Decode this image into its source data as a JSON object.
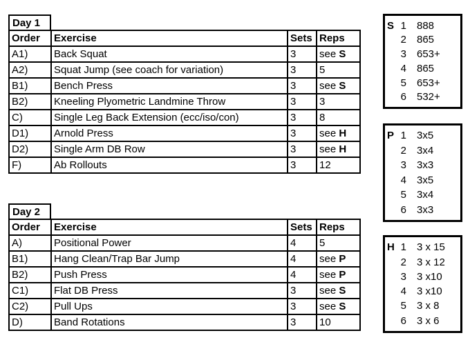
{
  "colors": {
    "border": "#000000",
    "text": "#000000",
    "background": "#ffffff"
  },
  "day1": {
    "label": "Day 1",
    "headers": {
      "order": "Order",
      "exercise": "Exercise",
      "sets": "Sets",
      "reps": "Reps"
    },
    "rows": [
      {
        "order": "A1)",
        "exercise": "Back Squat",
        "sets": "3",
        "reps": "see ",
        "ref": "S"
      },
      {
        "order": "A2)",
        "exercise": "Squat Jump (see coach for variation)",
        "sets": "3",
        "reps": "5",
        "ref": ""
      },
      {
        "order": "B1)",
        "exercise": "Bench Press",
        "sets": "3",
        "reps": "see ",
        "ref": "S"
      },
      {
        "order": "B2)",
        "exercise": "Kneeling Plyometric Landmine Throw",
        "sets": "3",
        "reps": "3",
        "ref": ""
      },
      {
        "order": "C)",
        "exercise": "Single Leg Back Extension (ecc/iso/con)",
        "sets": "3",
        "reps": "8",
        "ref": ""
      },
      {
        "order": "D1)",
        "exercise": "Arnold Press",
        "sets": "3",
        "reps": "see ",
        "ref": "H"
      },
      {
        "order": "D2)",
        "exercise": "Single Arm DB Row",
        "sets": "3",
        "reps": "see ",
        "ref": "H"
      },
      {
        "order": "F)",
        "exercise": "Ab Rollouts",
        "sets": "3",
        "reps": "12",
        "ref": ""
      }
    ]
  },
  "day2": {
    "label": "Day 2",
    "headers": {
      "order": "Order",
      "exercise": "Exercise",
      "sets": "Sets",
      "reps": "Reps"
    },
    "rows": [
      {
        "order": "A)",
        "exercise": "Positional Power",
        "sets": "4",
        "reps": "5",
        "ref": ""
      },
      {
        "order": "B1)",
        "exercise": "Hang Clean/Trap Bar Jump",
        "sets": "4",
        "reps": "see ",
        "ref": "P"
      },
      {
        "order": "B2)",
        "exercise": "Push Press",
        "sets": "4",
        "reps": "see ",
        "ref": "P"
      },
      {
        "order": "C1)",
        "exercise": "Flat DB Press",
        "sets": "3",
        "reps": "see ",
        "ref": "S"
      },
      {
        "order": "C2)",
        "exercise": "Pull Ups",
        "sets": "3",
        "reps": "see ",
        "ref": "S"
      },
      {
        "order": "D)",
        "exercise": "Band Rotations",
        "sets": "3",
        "reps": "10",
        "ref": ""
      }
    ]
  },
  "ref_boxes": [
    {
      "letter": "S",
      "rows": [
        {
          "num": "1",
          "val": "888"
        },
        {
          "num": "2",
          "val": "865"
        },
        {
          "num": "3",
          "val": "653+"
        },
        {
          "num": "4",
          "val": "865"
        },
        {
          "num": "5",
          "val": "653+"
        },
        {
          "num": "6",
          "val": "532+"
        }
      ]
    },
    {
      "letter": "P",
      "rows": [
        {
          "num": "1",
          "val": "3x5"
        },
        {
          "num": "2",
          "val": "3x4"
        },
        {
          "num": "3",
          "val": "3x3"
        },
        {
          "num": "4",
          "val": "3x5"
        },
        {
          "num": "5",
          "val": "3x4"
        },
        {
          "num": "6",
          "val": "3x3"
        }
      ]
    },
    {
      "letter": "H",
      "rows": [
        {
          "num": "1",
          "val": "3 x 15"
        },
        {
          "num": "2",
          "val": "3 x 12"
        },
        {
          "num": "3",
          "val": "3 x10"
        },
        {
          "num": "4",
          "val": "3 x10"
        },
        {
          "num": "5",
          "val": "3 x 8"
        },
        {
          "num": "6",
          "val": "3 x 6"
        }
      ]
    }
  ]
}
